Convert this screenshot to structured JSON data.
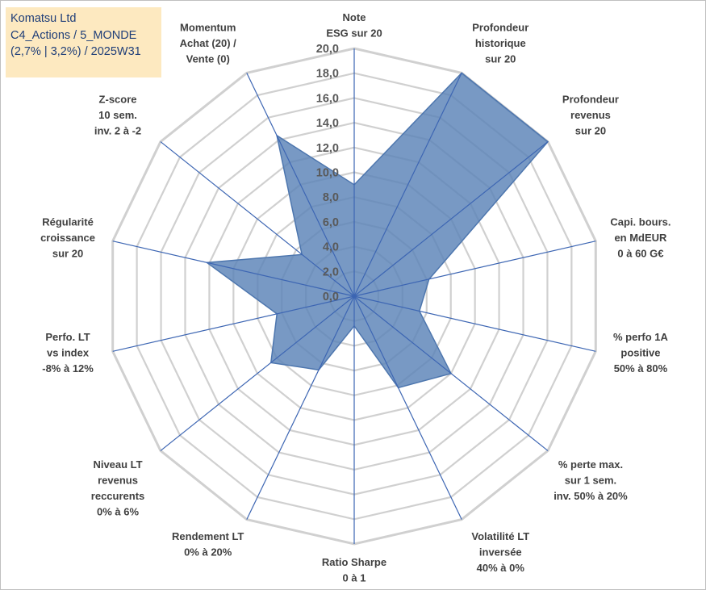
{
  "info": {
    "line1": "Komatsu Ltd",
    "line2": "C4_Actions / 5_MONDE",
    "line3": "(2,7% | 3,2%) / 2025W31"
  },
  "colors": {
    "fill": "#5a82b7",
    "stroke": "#4d76ae",
    "grid": "#d0d0d0",
    "spoke": "#3d66b3",
    "info_bg": "#fde9c0",
    "info_text": "#1f3e78"
  },
  "chart_data": {
    "type": "radar",
    "rmin": 0,
    "rmax": 20,
    "step": 2,
    "tick_labels": [
      "0,0",
      "2,0",
      "4,0",
      "6,0",
      "8,0",
      "10,0",
      "12,0",
      "14,0",
      "16,0",
      "18,0",
      "20,0"
    ],
    "axes": [
      {
        "label": [
          "Note",
          "ESG sur 20"
        ],
        "value": 9.0
      },
      {
        "label": [
          "Profondeur",
          "historique",
          "sur 20"
        ],
        "value": 20.0
      },
      {
        "label": [
          "Profondeur",
          "revenus",
          "sur 20"
        ],
        "value": 20.0
      },
      {
        "label": [
          "Capi. bours.",
          "en MdEUR",
          "0 à 60 G€"
        ],
        "value": 6.2
      },
      {
        "label": [
          "% perfo 1A",
          "positive",
          "50% à 80%"
        ],
        "value": 5.4
      },
      {
        "label": [
          "% perte max.",
          "sur 1 sem.",
          "inv. 50% à 20%"
        ],
        "value": 10.0
      },
      {
        "label": [
          "Volatilité LT",
          "inversée",
          "40% à 0%"
        ],
        "value": 8.2
      },
      {
        "label": [
          "Ratio Sharpe",
          "0 à 1"
        ],
        "value": 2.4
      },
      {
        "label": [
          "Rendement LT",
          "0% à 20%"
        ],
        "value": 6.6
      },
      {
        "label": [
          "Niveau LT",
          "revenus",
          "reccurents",
          "0% à 6%"
        ],
        "value": 8.6
      },
      {
        "label": [
          "Perfo. LT",
          "vs index",
          "-8% à 12%"
        ],
        "value": 6.4
      },
      {
        "label": [
          "Régularité",
          "croissance",
          "sur 20"
        ],
        "value": 12.2
      },
      {
        "label": [
          "Z-score",
          "10 sem.",
          "inv. 2 à -2"
        ],
        "value": 5.4
      },
      {
        "label": [
          "Momentum",
          "Achat (20) /",
          "Vente (0)"
        ],
        "value": 14.4
      }
    ]
  }
}
